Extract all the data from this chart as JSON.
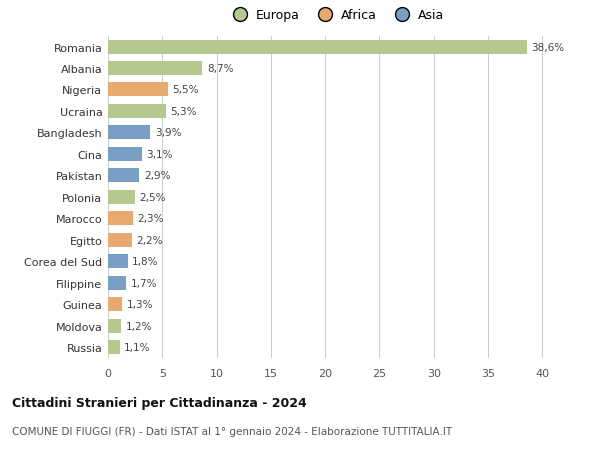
{
  "countries": [
    "Romania",
    "Albania",
    "Nigeria",
    "Ucraina",
    "Bangladesh",
    "Cina",
    "Pakistan",
    "Polonia",
    "Marocco",
    "Egitto",
    "Corea del Sud",
    "Filippine",
    "Guinea",
    "Moldova",
    "Russia"
  ],
  "values": [
    38.6,
    8.7,
    5.5,
    5.3,
    3.9,
    3.1,
    2.9,
    2.5,
    2.3,
    2.2,
    1.8,
    1.7,
    1.3,
    1.2,
    1.1
  ],
  "labels": [
    "38,6%",
    "8,7%",
    "5,5%",
    "5,3%",
    "3,9%",
    "3,1%",
    "2,9%",
    "2,5%",
    "2,3%",
    "2,2%",
    "1,8%",
    "1,7%",
    "1,3%",
    "1,2%",
    "1,1%"
  ],
  "continents": [
    "Europa",
    "Europa",
    "Africa",
    "Europa",
    "Asia",
    "Asia",
    "Asia",
    "Europa",
    "Africa",
    "Africa",
    "Asia",
    "Asia",
    "Africa",
    "Europa",
    "Europa"
  ],
  "colors": {
    "Europa": "#b5c98e",
    "Africa": "#e8a96e",
    "Asia": "#7a9fc4"
  },
  "xlim": [
    0,
    42
  ],
  "xticks": [
    0,
    5,
    10,
    15,
    20,
    25,
    30,
    35,
    40
  ],
  "title": "Cittadini Stranieri per Cittadinanza - 2024",
  "subtitle": "COMUNE DI FIUGGI (FR) - Dati ISTAT al 1° gennaio 2024 - Elaborazione TUTTITALIA.IT",
  "background_color": "#ffffff",
  "grid_color": "#cccccc",
  "bar_height": 0.65
}
